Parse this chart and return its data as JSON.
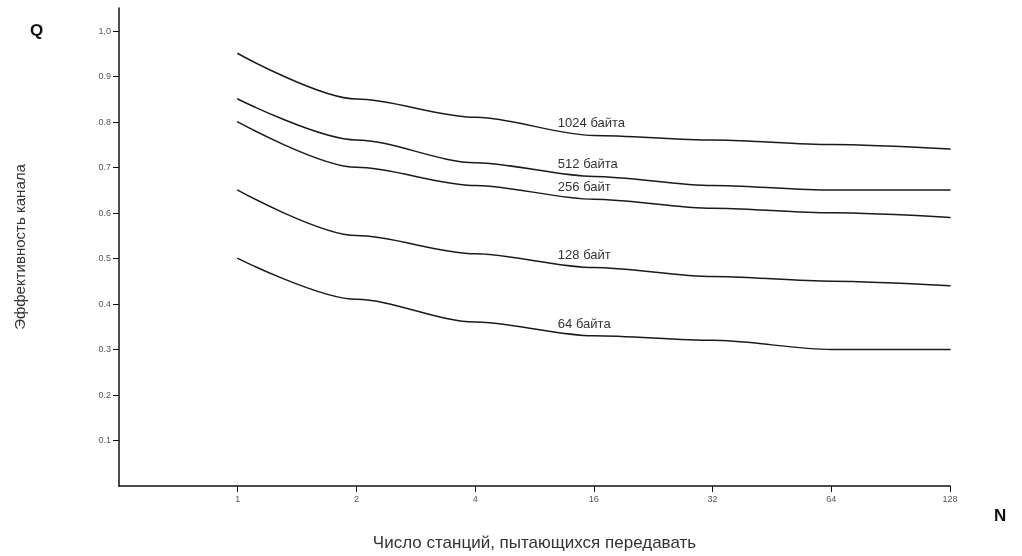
{
  "chart_data": {
    "type": "line",
    "xlabel": "Число станций, пытающихся передавать",
    "ylabel": "Эффективность канала",
    "annotations": [
      "Q",
      "N"
    ],
    "categories": [
      null,
      "1",
      "2",
      "4",
      "16",
      "32",
      "64",
      "128"
    ],
    "series": [
      {
        "name": "1024 байта",
        "color": "#1a1a1a",
        "values": [
          null,
          0.95,
          0.85,
          0.81,
          0.77,
          0.76,
          0.75,
          0.74
        ]
      },
      {
        "name": "512 байта",
        "color": "#1a1a1a",
        "values": [
          null,
          0.85,
          0.76,
          0.71,
          0.68,
          0.66,
          0.65,
          0.65
        ]
      },
      {
        "name": "256 байт",
        "color": "#1a1a1a",
        "values": [
          null,
          0.8,
          0.7,
          0.66,
          0.63,
          0.61,
          0.6,
          0.59
        ]
      },
      {
        "name": "128 байт",
        "color": "#1a1a1a",
        "values": [
          null,
          0.65,
          0.55,
          0.51,
          0.48,
          0.46,
          0.45,
          0.44
        ]
      },
      {
        "name": "64 байта",
        "color": "#1a1a1a",
        "values": [
          null,
          0.5,
          0.41,
          0.36,
          0.33,
          0.32,
          0.3,
          0.3
        ]
      }
    ],
    "ylim": [
      0,
      1.05
    ],
    "yticks": [
      0.1,
      0.2,
      0.3,
      0.4,
      0.5,
      0.6,
      0.7,
      0.8,
      0.9,
      {
        "value": 1,
        "label": "1,0"
      }
    ],
    "legend": false,
    "grid": false,
    "marker": "none",
    "line_style": "solid"
  }
}
